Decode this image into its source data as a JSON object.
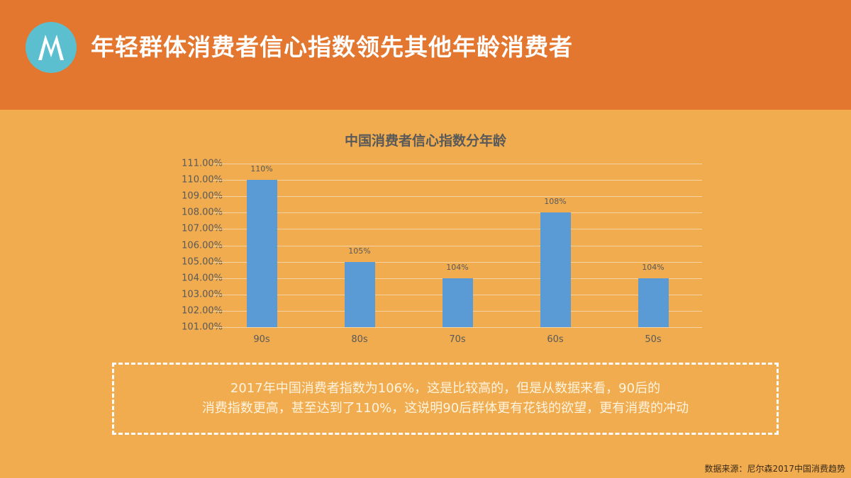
{
  "header": {
    "title": "年轻群体消费者信心指数领先其他年龄消费者",
    "logo_icon": "motorola-logo-icon",
    "background_color": "#E47730",
    "logo_color": "#5BBFCF"
  },
  "chart_data": {
    "type": "bar",
    "title": "中国消费者信心指数分年龄",
    "categories": [
      "90s",
      "80s",
      "70s",
      "60s",
      "50s"
    ],
    "values": [
      110,
      105,
      104,
      108,
      104
    ],
    "data_labels": [
      "110%",
      "105%",
      "104%",
      "108%",
      "104%"
    ],
    "xlabel": "",
    "ylabel": "",
    "ylim": [
      101,
      111
    ],
    "y_ticks": [
      "111.00%",
      "110.00%",
      "109.00%",
      "108.00%",
      "107.00%",
      "106.00%",
      "105.00%",
      "104.00%",
      "103.00%",
      "102.00%",
      "101.00%"
    ],
    "grid": true,
    "legend": "none",
    "bar_color": "#5B9BD5"
  },
  "note": {
    "line1": "2017年中国消费者指数为106%，这是比较高的，但是从数据来看，90后的",
    "line2": "消费指数更高，甚至达到了110%，这说明90后群体更有花钱的欲望，更有消费的冲动"
  },
  "source": "数据来源：尼尔森2017中国消费趋势",
  "colors": {
    "body_background": "#F0AC4E",
    "header_background": "#E47730"
  }
}
